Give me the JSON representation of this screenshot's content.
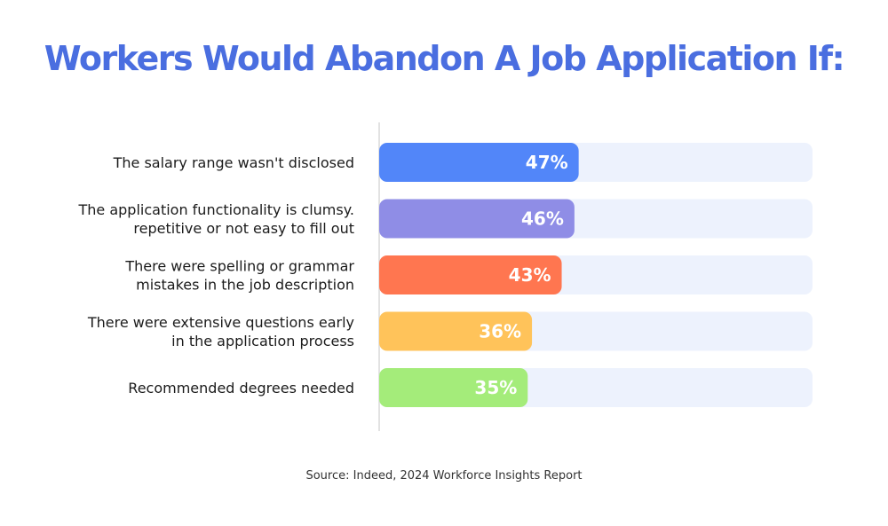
{
  "chart_data": {
    "type": "bar",
    "orientation": "horizontal",
    "title": "Workers Would Abandon A Job Application If:",
    "categories": [
      [
        "The salary range wasn't disclosed"
      ],
      [
        "The application functionality is clumsy.",
        "repetitive or not easy to fill out"
      ],
      [
        "There were spelling or grammar",
        "mistakes in the job description"
      ],
      [
        "There were extensive questions early",
        "in the application process"
      ],
      [
        "Recommended degrees needed"
      ]
    ],
    "values": [
      47,
      46,
      43,
      36,
      35
    ],
    "value_labels": [
      "47%",
      "46%",
      "43%",
      "36%",
      "35%"
    ],
    "bar_colors": [
      "#5286f9",
      "#8f8de6",
      "#ff7650",
      "#ffc35a",
      "#a4ec7a"
    ],
    "track_color": "#edf2fd",
    "axis_line_color": "#d8d8d8",
    "title_color": "#4a6ee0",
    "xlim": [
      0,
      100
    ],
    "grid": false,
    "legend": "none",
    "source": "Source: Indeed, 2024 Workforce Insights Report"
  }
}
